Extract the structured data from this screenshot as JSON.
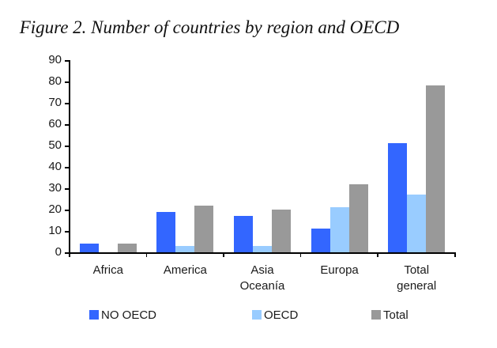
{
  "chart_data": {
    "type": "bar",
    "title": "Figure 2. Number of countries by region and OECD",
    "categories": [
      "Africa",
      "America",
      "Asia\nOceanía",
      "Europa",
      "Total\ngeneral"
    ],
    "series": [
      {
        "name": "NO OECD",
        "color": "#3366FF",
        "values": [
          4,
          19,
          17,
          11,
          51
        ]
      },
      {
        "name": "OECD",
        "color": "#99CCFF",
        "values": [
          0,
          3,
          3,
          21,
          27
        ]
      },
      {
        "name": "Total",
        "color": "#999999",
        "values": [
          4,
          22,
          20,
          32,
          78
        ]
      }
    ],
    "xlabel": "",
    "ylabel": "",
    "ylim": [
      0,
      90
    ],
    "y_ticks": [
      0,
      10,
      20,
      30,
      40,
      50,
      60,
      70,
      80,
      90
    ],
    "grid": false,
    "legend_position": "bottom",
    "axis_color": "#000000",
    "text_color": "#1a1a1a",
    "background": "#FFFFFF"
  }
}
